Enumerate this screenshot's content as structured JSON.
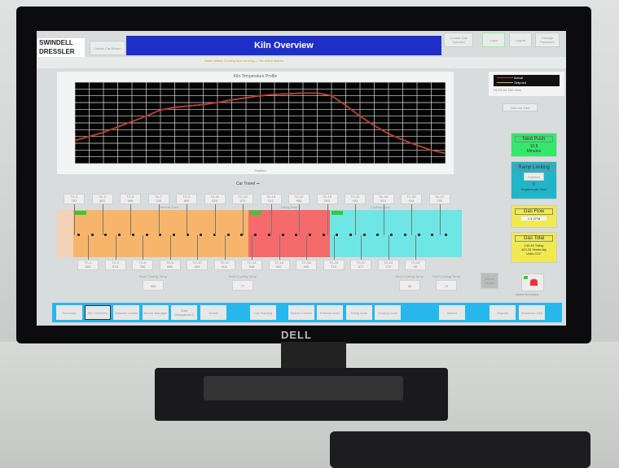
{
  "header": {
    "logo": "SWINDELL DRESSLER",
    "title": "Kiln Overview",
    "left_button": "Cancel Car Return",
    "buttons": [
      "Control Gas Operator",
      "Login",
      "Logout",
      "Change Password"
    ]
  },
  "subheader": {
    "text": "Alarm status: Cooling fans running — No active alarms"
  },
  "chart_data": {
    "type": "line",
    "title": "Kiln Temperature Profile",
    "xlabel": "Position",
    "grid": true,
    "legend": "top-right (external box)",
    "xlim": [
      0,
      26
    ],
    "ylim": [
      0,
      1200
    ],
    "x": [
      0,
      1,
      2,
      3,
      4,
      5,
      6,
      7,
      8,
      9,
      10,
      11,
      12,
      13,
      14,
      15,
      16,
      17,
      18,
      19,
      20,
      21,
      22,
      23,
      24,
      25,
      26
    ],
    "series": [
      {
        "name": "Actual",
        "color": "#c0392b",
        "values": [
          340,
          400,
          460,
          540,
          620,
          700,
          790,
          830,
          850,
          870,
          900,
          940,
          970,
          1000,
          1020,
          1030,
          1040,
          1040,
          1000,
          860,
          700,
          560,
          440,
          350,
          270,
          200,
          150
        ]
      },
      {
        "name": "Setpoint",
        "color": "#c8b43a",
        "values": [
          340,
          400,
          460,
          540,
          620,
          700,
          790,
          830,
          850,
          870,
          900,
          940,
          970,
          1000,
          1020,
          1030,
          1040,
          1040,
          1000,
          860,
          700,
          560,
          440,
          350,
          270,
          200,
          150
        ]
      }
    ]
  },
  "legend": {
    "actual": "Actual",
    "setpoint": "Setpoint",
    "note": "NLOS for 100 mins",
    "button": "Setpoint View"
  },
  "car_travel": "Car Travel",
  "zones": {
    "colors": {
      "preheat": "#f7b56b",
      "firing": "#f56a6a",
      "cooling": "#6ee6e6"
    },
    "labels": [
      "Preheat Zone",
      "Firing Zone",
      "Cooling Zone"
    ],
    "top_tcs": [
      [
        "TC-1",
        "767"
      ],
      [
        "TC-3",
        "863"
      ],
      [
        "TC-5",
        "955"
      ],
      [
        "TC-7",
        "748"
      ],
      [
        "TC-9",
        "809"
      ],
      [
        "TC-11",
        "829"
      ],
      [
        "TC-13",
        "873"
      ],
      [
        "TC-15",
        "922"
      ],
      [
        "TC-17",
        "998"
      ],
      [
        "TC-19",
        "953"
      ],
      [
        "TC-21",
        "924"
      ],
      [
        "TC-23",
        "914"
      ],
      [
        "TC-25",
        "914"
      ],
      [
        "TC-27",
        "736"
      ]
    ],
    "bottom_tcs": [
      [
        "TC-2",
        "855"
      ],
      [
        "TC-4",
        "875"
      ],
      [
        "TC-6",
        "780"
      ],
      [
        "TC-8",
        "880"
      ],
      [
        "TC-10",
        "863"
      ],
      [
        "TC-12",
        "901"
      ],
      [
        "TC-14",
        "938"
      ],
      [
        "TC-16",
        "987"
      ],
      [
        "TC-18",
        "930"
      ],
      [
        "TC-20",
        "719"
      ],
      [
        "TC-22",
        "677"
      ],
      [
        "TC-24",
        "179"
      ],
      [
        "TC-26",
        "90"
      ]
    ],
    "cooling_temps": [
      [
        "Roof Cooling Temp",
        "504"
      ],
      [
        "Roof Cooling Temp",
        "77"
      ],
      [
        "Roof Cooling Temp",
        "95"
      ],
      [
        "Roof Cooling Temp",
        "70"
      ]
    ]
  },
  "side": {
    "next_push": {
      "title": "Next Push",
      "value": "10.8",
      "unit": "Minutes",
      "color": "#33e86b"
    },
    "ramp": {
      "title": "Ramp Limiting",
      "button": "Enabled",
      "value": "0",
      "unit": "Degrees per Hour",
      "color": "#21b5c8"
    },
    "gas_flow": {
      "title": "Gas Flow",
      "value": "1.5 CFM",
      "color": "#f0ea50"
    },
    "gas_total": {
      "title": "Gas Total",
      "today": "140.45",
      "today_label": "Today",
      "yesterday": "420.25",
      "yesterday_label": "Yesterday",
      "unit": "Units CCF",
      "color": "#f0ea50"
    },
    "silence": "Silence Alarm",
    "alarm_label": "Alarm Summary"
  },
  "nav": [
    "Summary",
    "Kiln Overview",
    "Setpoint Control",
    "Burner Manager",
    "Data Management",
    "Trends",
    "Car Pushing",
    "Burner Control",
    "Preheat Zone",
    "Firing Zone",
    "Cooling Zone",
    "Alarms",
    "Reports",
    "Shutdown HMI"
  ],
  "monitor_brand": "DELL"
}
